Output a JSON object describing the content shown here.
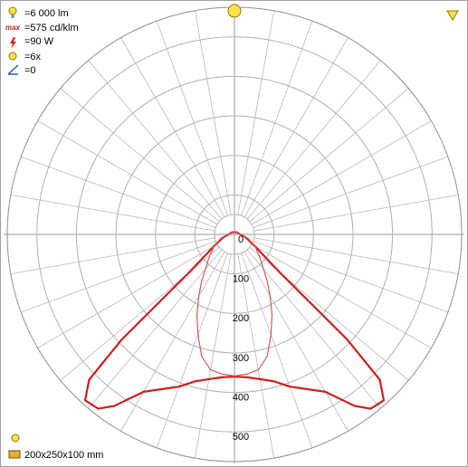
{
  "chart_data": {
    "type": "polar",
    "annotations": [
      "=6 000 lm",
      "=575 cd/klm",
      "=90 W",
      "=6x",
      "=0"
    ],
    "dimensions": "200x250x100 mm",
    "x": [
      -180,
      -135,
      -90,
      -75,
      -60,
      -50,
      -47,
      -45,
      -42,
      -38,
      -35,
      -30,
      -25,
      -20,
      -15,
      -10,
      -5,
      0,
      5,
      10,
      15,
      20,
      25,
      30,
      35,
      38,
      42,
      45,
      47,
      50,
      60,
      75,
      90,
      135,
      180
    ],
    "rlim": [
      0,
      575
    ],
    "rticks": [
      0,
      100,
      200,
      300,
      400,
      500
    ],
    "series": [
      {
        "color": "#cc1f1f",
        "values": [
          5,
          8,
          15,
          30,
          60,
          150,
          390,
          520,
          565,
          560,
          530,
          460,
          432,
          410,
          385,
          372,
          363,
          360,
          363,
          372,
          385,
          410,
          432,
          460,
          530,
          560,
          565,
          520,
          390,
          150,
          60,
          30,
          15,
          8,
          5
        ]
      },
      {
        "color": "#d05a5a",
        "values": [
          5,
          8,
          15,
          35,
          60,
          80,
          88,
          95,
          105,
          125,
          145,
          180,
          225,
          270,
          320,
          348,
          355,
          358,
          355,
          348,
          320,
          270,
          225,
          180,
          145,
          125,
          105,
          95,
          88,
          80,
          60,
          35,
          15,
          8,
          5
        ]
      }
    ],
    "grid": true
  }
}
